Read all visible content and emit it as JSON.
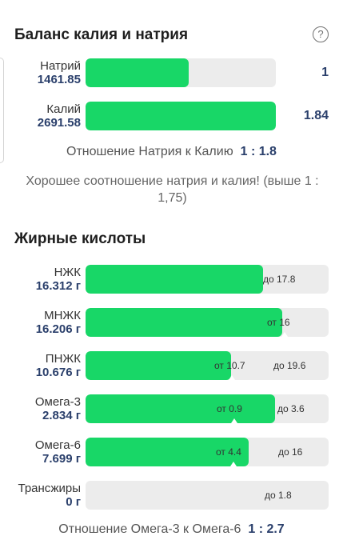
{
  "potassium_sodium": {
    "title": "Баланс калия и натрия",
    "help_symbol": "?",
    "sodium": {
      "label": "Натрий",
      "value": "1461.85",
      "ratio": "1",
      "fill": 0.54
    },
    "potassium": {
      "label": "Калий",
      "value": "2691.58",
      "ratio": "1.84",
      "fill": 1.0
    },
    "ratio_label": "Отношение Натрия к Калию",
    "ratio_value": "1 : 1.8",
    "note": "Хорошее соотношение натрия и калия! (выше 1 : 1,75)"
  },
  "fatty_acids": {
    "title": "Жирные кислоты",
    "items": [
      {
        "label": "НЖК",
        "value": "16.312 г",
        "fill": 0.73,
        "min_text": "",
        "max_text": "до 17.8"
      },
      {
        "label": "МНЖК",
        "value": "16.206 г",
        "fill": 0.81,
        "min_text": "от 16",
        "max_text": ""
      },
      {
        "label": "ПНЖК",
        "value": "10.676 г",
        "fill": 0.6,
        "min_text": "от 10.7",
        "max_text": "до 19.6"
      },
      {
        "label": "Омега-3",
        "value": "2.834 г",
        "fill": 0.78,
        "min_text": "от 0.9",
        "max_text": "до 3.6"
      },
      {
        "label": "Омега-6",
        "value": "7.699 г",
        "fill": 0.67,
        "min_text": "от 4.4",
        "max_text": "до 16"
      },
      {
        "label": "Трансжиры",
        "value": "0 г",
        "fill": 0,
        "min_text": "",
        "max_text": "до 1.8"
      }
    ],
    "ratio_label": "Отношение Омега-3 к Омега-6",
    "ratio_value": "1 : 2.7"
  },
  "colors": {
    "fill": "#18d767",
    "track": "#ececec",
    "value_text": "#2a3f6b"
  }
}
